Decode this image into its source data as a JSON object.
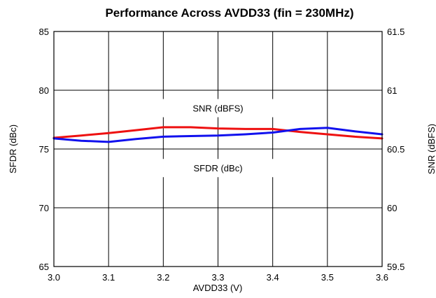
{
  "chart_data": {
    "type": "line",
    "title": "Performance Across AVDD33 (fin = 230MHz)",
    "xlabel": "AVDD33 (V)",
    "ylabel_left": "SFDR (dBc)",
    "ylabel_right": "SNR (dBFS)",
    "xlim": [
      3.0,
      3.6
    ],
    "ylim_left": [
      65,
      85
    ],
    "ylim_right": [
      59.5,
      61.5
    ],
    "x_ticks": [
      "3.0",
      "3.1",
      "3.2",
      "3.3",
      "3.4",
      "3.5",
      "3.6"
    ],
    "y_left_ticks": [
      "85",
      "80",
      "75",
      "70",
      "65"
    ],
    "y_right_ticks": [
      "61.5",
      "61",
      "60.5",
      "60",
      "59.5"
    ],
    "grid": true,
    "annotations": [
      "SNR (dBFS)",
      "SFDR (dBc)"
    ],
    "series": [
      {
        "name": "SNR (dBFS)",
        "axis": "right",
        "color": "#ee1111",
        "x": [
          3.0,
          3.05,
          3.1,
          3.15,
          3.2,
          3.25,
          3.3,
          3.35,
          3.4,
          3.45,
          3.5,
          3.55,
          3.6
        ],
        "y": [
          60.595,
          60.615,
          60.635,
          60.66,
          60.685,
          60.685,
          60.675,
          60.67,
          60.67,
          60.645,
          60.625,
          60.605,
          60.59
        ]
      },
      {
        "name": "SFDR (dBc)",
        "axis": "left",
        "color": "#1111ee",
        "x": [
          3.0,
          3.05,
          3.1,
          3.15,
          3.2,
          3.25,
          3.3,
          3.35,
          3.4,
          3.45,
          3.5,
          3.55,
          3.6
        ],
        "y": [
          75.9,
          75.7,
          75.6,
          75.85,
          76.05,
          76.1,
          76.15,
          76.25,
          76.4,
          76.7,
          76.8,
          76.5,
          76.25
        ]
      }
    ]
  }
}
